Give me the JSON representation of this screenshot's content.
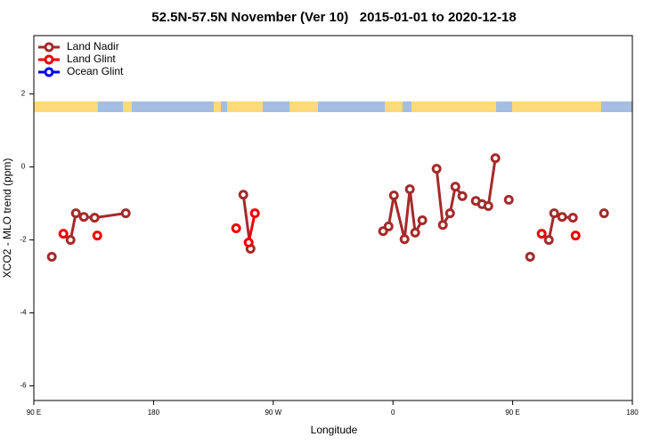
{
  "chart_data": {
    "type": "line",
    "title": "52.5N-57.5N November (Ver 10)   2015-01-01 to 2020-12-18",
    "x_label": "Longitude",
    "y_label": "XCO2 - MLO trend (ppm)",
    "xlim": [
      -270,
      180
    ],
    "xticks": [
      {
        "value": -270,
        "label": "90 E"
      },
      {
        "value": -180,
        "label": "180"
      },
      {
        "value": -90,
        "label": "90 W"
      },
      0,
      {
        "value": 90,
        "label": "90 E"
      },
      {
        "value": 180,
        "label": "180"
      }
    ],
    "ylim": [
      -6.4,
      3.6
    ],
    "yticks": [
      2,
      0,
      -2,
      -4,
      -6
    ],
    "legend": "upper left",
    "series": [
      {
        "name": "Land Nadir",
        "color": "#a52a2a",
        "x": [
          -256.5,
          null,
          -242.4,
          -238.4,
          -232.4,
          -224.3,
          -200.9,
          null,
          -112.5,
          -107.1,
          null,
          -7.4,
          -3.3,
          0.7,
          8.7,
          12.7,
          16.7,
          22.1,
          null,
          32.8,
          37.5,
          42.9,
          46.9,
          52.2,
          null,
          62.3,
          67.0,
          71.7,
          77.0,
          null,
          87.1,
          null,
          103.1,
          null,
          117.2,
          121.2,
          127.2,
          135.3,
          null,
          158.7
        ],
        "values": [
          -2.46,
          null,
          -2.0,
          -1.27,
          -1.37,
          -1.39,
          -1.27,
          null,
          -0.76,
          -2.24,
          null,
          -1.76,
          -1.63,
          -0.78,
          -1.98,
          -0.61,
          -1.8,
          -1.46,
          null,
          -0.05,
          -1.59,
          -1.27,
          -0.54,
          -0.8,
          null,
          -0.93,
          -1.02,
          -1.07,
          0.24,
          null,
          -0.9,
          null,
          -2.46,
          null,
          -2.0,
          -1.27,
          -1.37,
          -1.39,
          null,
          -1.27
        ]
      },
      {
        "name": "Land Glint",
        "color": "#ee0000",
        "x": [
          -247.8,
          null,
          -222.3,
          null,
          -117.9,
          null,
          -108.5,
          -103.8,
          null,
          111.8,
          null,
          137.3
        ],
        "values": [
          -1.83,
          null,
          -1.88,
          null,
          -1.68,
          null,
          -2.07,
          -1.27,
          null,
          -1.83,
          null,
          -1.88
        ]
      },
      {
        "name": "Ocean Glint",
        "color": "#0000ee",
        "x": [],
        "values": []
      }
    ]
  }
}
